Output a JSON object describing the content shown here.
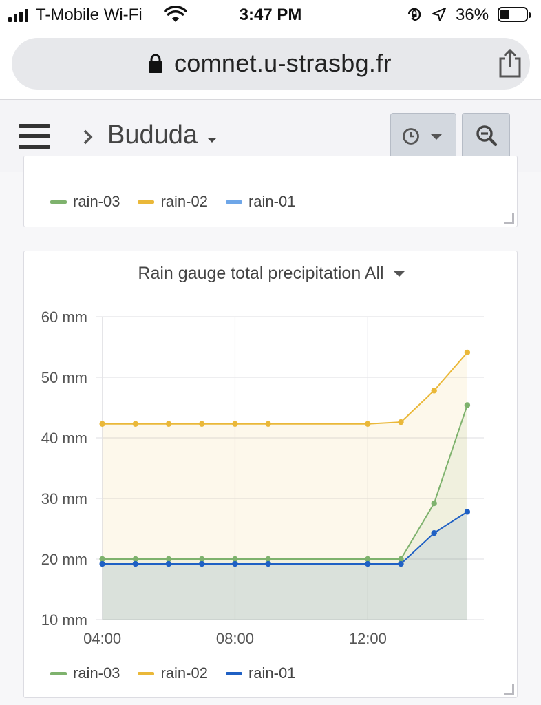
{
  "status_bar": {
    "carrier": "T-Mobile Wi-Fi",
    "time": "3:47 PM",
    "battery_percent_label": "36%",
    "battery_level": 0.36,
    "icons": [
      "signal-icon",
      "wifi-icon",
      "orientation-lock-icon",
      "location-icon",
      "battery-icon"
    ]
  },
  "browser": {
    "url": "comnet.u-strasbg.fr",
    "icons": [
      "lock-icon",
      "share-icon"
    ]
  },
  "header": {
    "dashboard_title": "Bududa",
    "icons": [
      "menu-icon",
      "breadcrumb-chevron-icon",
      "clock-icon",
      "zoom-out-icon"
    ]
  },
  "top_panel": {
    "legend": [
      {
        "name": "rain-03",
        "color": "#7eb26d"
      },
      {
        "name": "rain-02",
        "color": "#eab839"
      },
      {
        "name": "rain-01",
        "color": "#6ea6e8"
      }
    ]
  },
  "main_panel": {
    "title": "Rain gauge total precipitation All",
    "legend": [
      {
        "name": "rain-03",
        "color": "#7eb26d"
      },
      {
        "name": "rain-02",
        "color": "#eab839"
      },
      {
        "name": "rain-01",
        "color": "#1f60c4"
      }
    ]
  },
  "chart_data": {
    "type": "area",
    "title": "Rain gauge total precipitation All",
    "xlabel": "",
    "ylabel": "",
    "x_ticks": [
      "04:00",
      "08:00",
      "12:00"
    ],
    "y_ticks": [
      "10 mm",
      "20 mm",
      "30 mm",
      "40 mm",
      "50 mm",
      "60 mm"
    ],
    "ylim": [
      10,
      60
    ],
    "xlim_hours": [
      3.8,
      15.5
    ],
    "x_hours": [
      4,
      5,
      6,
      7,
      8,
      9,
      12,
      13,
      14,
      15
    ],
    "grid": true,
    "legend_placement": "bottom-left",
    "series": [
      {
        "name": "rain-03",
        "color": "#7eb26d",
        "values": [
          20.0,
          20.0,
          20.0,
          20.0,
          20.0,
          20.0,
          20.0,
          20.0,
          29.2,
          45.4
        ]
      },
      {
        "name": "rain-02",
        "color": "#eab839",
        "values": [
          42.3,
          42.3,
          42.3,
          42.3,
          42.3,
          42.3,
          42.3,
          42.6,
          47.8,
          54.1
        ]
      },
      {
        "name": "rain-01",
        "color": "#1f60c4",
        "values": [
          19.2,
          19.2,
          19.2,
          19.2,
          19.2,
          19.2,
          19.2,
          19.2,
          24.3,
          27.8
        ]
      }
    ]
  }
}
